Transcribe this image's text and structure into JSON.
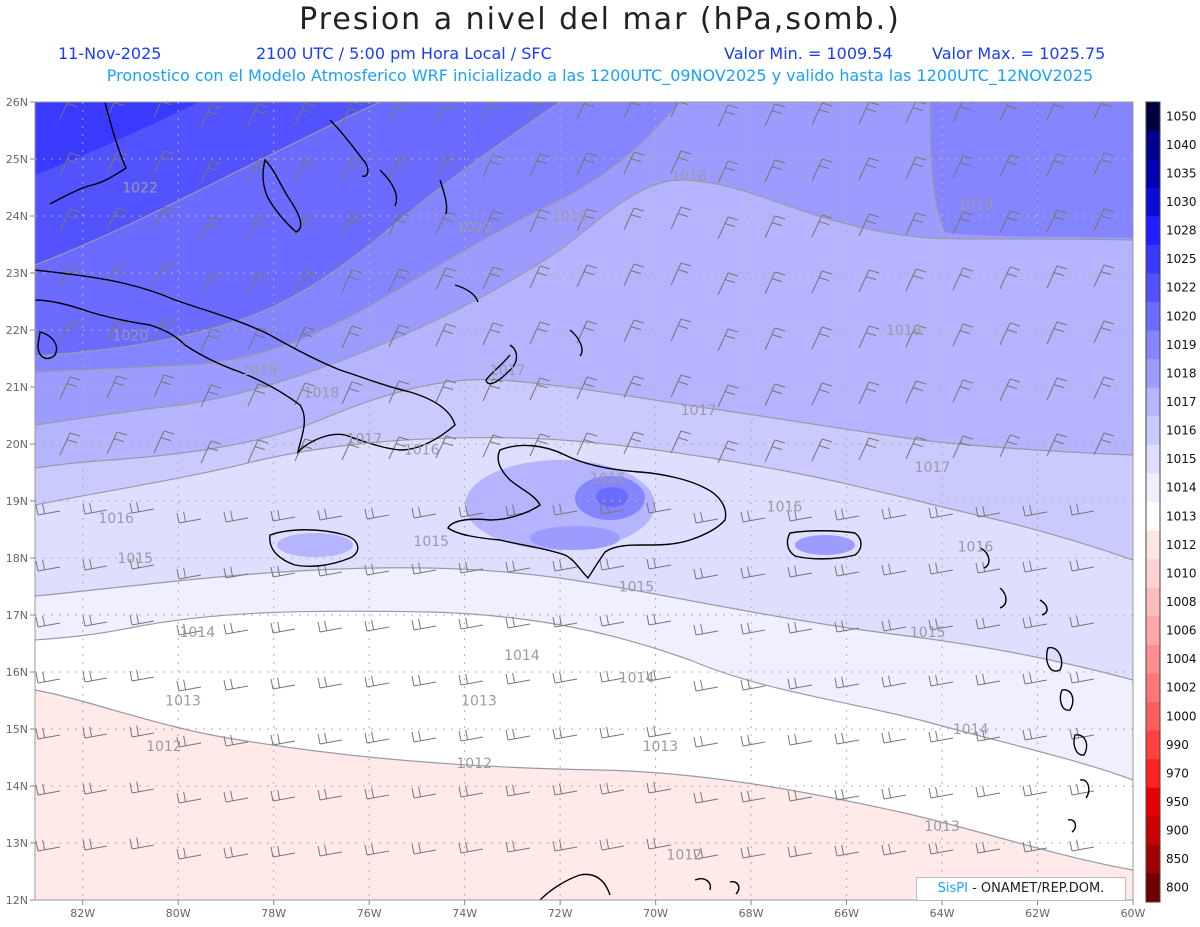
{
  "header": {
    "title": "Presion a nivel del mar (hPa,somb.)",
    "date": "11-Nov-2025",
    "time": "2100 UTC / 5:00 pm Hora Local / SFC",
    "min_value": "Valor Min. = 1009.54",
    "max_value": "Valor Max. = 1025.75",
    "model_line": "Pronostico con el Modelo Atmosferico WRF inicializado a las 1200UTC_09NOV2025 y valido hasta las  1200UTC_12NOV2025"
  },
  "map": {
    "lat_labels": [
      "26N",
      "25N",
      "24N",
      "23N",
      "22N",
      "21N",
      "20N",
      "19N",
      "18N",
      "17N",
      "16N",
      "15N",
      "14N",
      "13N",
      "12N"
    ],
    "lon_labels": [
      "82W",
      "80W",
      "78W",
      "76W",
      "74W",
      "72W",
      "70W",
      "68W",
      "66W",
      "64W",
      "62W",
      "60W"
    ],
    "contour_labels": [
      {
        "text": "1022",
        "lon": -80.8,
        "lat": 24.5
      },
      {
        "text": "1020",
        "lon": -73.8,
        "lat": 23.8
      },
      {
        "text": "1019",
        "lon": -71.8,
        "lat": 24.0
      },
      {
        "text": "1018",
        "lon": -69.3,
        "lat": 24.7
      },
      {
        "text": "1019",
        "lon": -63.3,
        "lat": 24.2
      },
      {
        "text": "1020",
        "lon": -81.0,
        "lat": 21.9
      },
      {
        "text": "1019",
        "lon": -78.3,
        "lat": 21.3
      },
      {
        "text": "1018",
        "lon": -77.0,
        "lat": 20.9
      },
      {
        "text": "1017",
        "lon": -73.1,
        "lat": 21.3
      },
      {
        "text": "1018",
        "lon": -64.8,
        "lat": 22.0
      },
      {
        "text": "1017",
        "lon": -69.1,
        "lat": 20.6
      },
      {
        "text": "1017",
        "lon": -76.1,
        "lat": 20.1
      },
      {
        "text": "1016",
        "lon": -74.9,
        "lat": 19.9
      },
      {
        "text": "1016",
        "lon": -71.0,
        "lat": 19.4
      },
      {
        "text": "1017",
        "lon": -64.2,
        "lat": 19.6
      },
      {
        "text": "1016",
        "lon": -81.3,
        "lat": 18.7
      },
      {
        "text": "1016",
        "lon": -67.3,
        "lat": 18.9
      },
      {
        "text": "1015",
        "lon": -80.9,
        "lat": 18.0
      },
      {
        "text": "1015",
        "lon": -74.7,
        "lat": 18.3
      },
      {
        "text": "1016",
        "lon": -63.3,
        "lat": 18.2
      },
      {
        "text": "1015",
        "lon": -70.4,
        "lat": 17.5
      },
      {
        "text": "1014",
        "lon": -79.6,
        "lat": 16.7
      },
      {
        "text": "1014",
        "lon": -72.8,
        "lat": 16.3
      },
      {
        "text": "1015",
        "lon": -64.3,
        "lat": 16.7
      },
      {
        "text": "1014",
        "lon": -70.4,
        "lat": 15.9
      },
      {
        "text": "1013",
        "lon": -79.9,
        "lat": 15.5
      },
      {
        "text": "1013",
        "lon": -73.7,
        "lat": 15.5
      },
      {
        "text": "1014",
        "lon": -63.4,
        "lat": 15.0
      },
      {
        "text": "1012",
        "lon": -80.3,
        "lat": 14.7
      },
      {
        "text": "1013",
        "lon": -69.9,
        "lat": 14.7
      },
      {
        "text": "1012",
        "lon": -73.8,
        "lat": 14.4
      },
      {
        "text": "1013",
        "lon": -64.0,
        "lat": 13.3
      },
      {
        "text": "1012",
        "lon": -69.4,
        "lat": 12.8
      }
    ]
  },
  "colorbar": {
    "levels": [
      "1050",
      "1040",
      "1035",
      "1030",
      "1028",
      "1025",
      "1022",
      "1020",
      "1019",
      "1018",
      "1017",
      "1016",
      "1015",
      "1014",
      "1013",
      "1012",
      "1010",
      "1008",
      "1006",
      "1004",
      "1002",
      "1000",
      "990",
      "970",
      "950",
      "900",
      "850",
      "800"
    ],
    "colors": [
      "#000040",
      "#00008c",
      "#0000b0",
      "#0b0bd8",
      "#1f1fff",
      "#3a3aff",
      "#5252ff",
      "#6b6bff",
      "#8585ff",
      "#9c9cff",
      "#b4b4ff",
      "#cacaff",
      "#dedeff",
      "#efefff",
      "#ffffff",
      "#ffe6e6",
      "#ffd2d2",
      "#ffbcbc",
      "#ffa6a6",
      "#ff8e8e",
      "#ff7676",
      "#ff5c5c",
      "#ff4040",
      "#ff2020",
      "#e60000",
      "#c80000",
      "#a00000",
      "#700000"
    ]
  },
  "credit": {
    "brand": "SisPI",
    "org": "- ONAMET/REP.DOM."
  }
}
